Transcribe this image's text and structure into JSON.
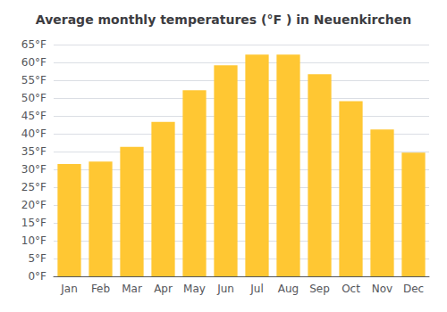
{
  "chart_data": {
    "type": "bar",
    "title": "Average monthly temperatures (°F ) in Neuenkirchen",
    "categories": [
      "Jan",
      "Feb",
      "Mar",
      "Apr",
      "May",
      "Jun",
      "Jul",
      "Aug",
      "Sep",
      "Oct",
      "Nov",
      "Dec"
    ],
    "values": [
      31.5,
      32.2,
      36.3,
      43.3,
      52.2,
      59.2,
      62.2,
      62.2,
      56.7,
      49.1,
      41.2,
      34.7
    ],
    "color": "#FFC733",
    "ylim": [
      0,
      65
    ],
    "yticks": [
      {
        "value": 0,
        "label": "0°F"
      },
      {
        "value": 5,
        "label": "5°F"
      },
      {
        "value": 10,
        "label": "10°F"
      },
      {
        "value": 15,
        "label": "15°F"
      },
      {
        "value": 20,
        "label": "20°F"
      },
      {
        "value": 25,
        "label": "25°F"
      },
      {
        "value": 30,
        "label": "30°F"
      },
      {
        "value": 35,
        "label": "35°F"
      },
      {
        "value": 40,
        "label": "40°F"
      },
      {
        "value": 45,
        "label": "45°F"
      },
      {
        "value": 50,
        "label": "50°F"
      },
      {
        "value": 55,
        "label": "55°F"
      },
      {
        "value": 60,
        "label": "60°F"
      },
      {
        "value": 65,
        "label": "65°F"
      }
    ],
    "grid": true
  }
}
